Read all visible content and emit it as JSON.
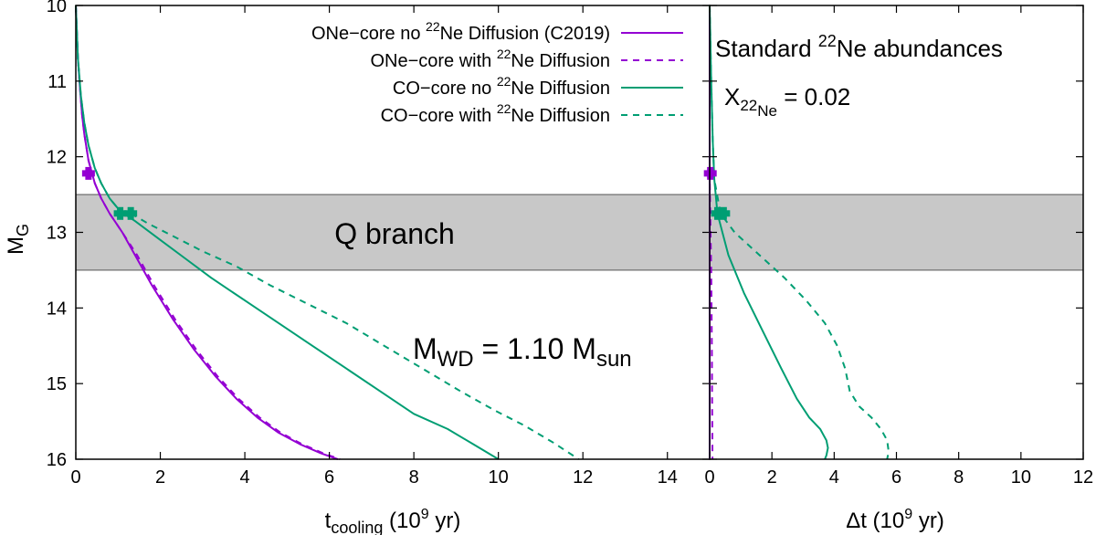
{
  "chart_data": [
    {
      "type": "line",
      "panel": "left",
      "xlabel_main": "t",
      "xlabel_sub": "cooling",
      "xlabel_units": " (10",
      "xlabel_exp": "9",
      "xlabel_end": " yr)",
      "ylabel_main": "M",
      "ylabel_sub": "G",
      "xlim": [
        0,
        15
      ],
      "ylim": [
        10,
        16
      ],
      "xticks": [
        "0",
        "2",
        "4",
        "6",
        "8",
        "10",
        "12",
        "14"
      ],
      "yticks": [
        "10",
        "11",
        "12",
        "13",
        "14",
        "15",
        "16"
      ],
      "band": {
        "y_from": 12.5,
        "y_to": 13.5,
        "label": "Q branch",
        "color": "#c8c8c8"
      },
      "annotation": {
        "main": "M",
        "sub": "WD",
        "mid": " = 1.10 M",
        "sub2": "sun"
      },
      "legend": [
        {
          "pre": "ONe−core no ",
          "sup": "22",
          "post": "Ne Diffusion (C2019)",
          "color": "#9400d3",
          "dash": false
        },
        {
          "pre": "ONe−core with ",
          "sup": "22",
          "post": "Ne Diffusion",
          "color": "#9400d3",
          "dash": true
        },
        {
          "pre": "CO−core no ",
          "sup": "22",
          "post": "Ne Diffusion",
          "color": "#009e73",
          "dash": false
        },
        {
          "pre": "CO−core with ",
          "sup": "22",
          "post": "Ne Diffusion",
          "color": "#009e73",
          "dash": true
        }
      ],
      "series": [
        {
          "name": "ONe-core no 22Ne Diffusion (C2019)",
          "color": "#9400d3",
          "dash": false,
          "x": [
            0.0,
            0.05,
            0.1,
            0.15,
            0.2,
            0.3,
            0.45,
            0.6,
            0.8,
            1.1,
            1.4,
            1.8,
            2.3,
            2.8,
            3.3,
            3.8,
            4.3,
            4.8,
            5.3,
            5.8,
            6.2
          ],
          "y": [
            10.0,
            10.7,
            11.1,
            11.45,
            11.7,
            12.05,
            12.35,
            12.55,
            12.75,
            13.0,
            13.3,
            13.7,
            14.15,
            14.55,
            14.9,
            15.2,
            15.45,
            15.65,
            15.8,
            15.92,
            16.0
          ]
        },
        {
          "name": "ONe-core with 22Ne Diffusion",
          "color": "#9400d3",
          "dash": true,
          "x": [
            0.0,
            0.05,
            0.1,
            0.15,
            0.2,
            0.3,
            0.45,
            0.6,
            0.8,
            1.1,
            1.45,
            1.85,
            2.35,
            2.85,
            3.35,
            3.85,
            4.35,
            4.85,
            5.35,
            5.85,
            6.25
          ],
          "y": [
            10.0,
            10.7,
            11.1,
            11.45,
            11.7,
            12.05,
            12.35,
            12.55,
            12.75,
            13.0,
            13.3,
            13.7,
            14.15,
            14.55,
            14.9,
            15.2,
            15.45,
            15.65,
            15.8,
            15.92,
            16.0
          ]
        },
        {
          "name": "CO-core no 22Ne Diffusion",
          "color": "#009e73",
          "dash": false,
          "x": [
            0.0,
            0.05,
            0.12,
            0.2,
            0.3,
            0.45,
            0.6,
            0.8,
            1.05,
            1.4,
            2.0,
            2.6,
            3.2,
            4.0,
            4.8,
            5.6,
            6.4,
            7.2,
            8.0,
            8.8,
            9.4,
            10.0
          ],
          "y": [
            10.0,
            10.7,
            11.2,
            11.55,
            11.85,
            12.15,
            12.35,
            12.55,
            12.72,
            12.85,
            13.1,
            13.35,
            13.6,
            13.9,
            14.2,
            14.5,
            14.8,
            15.1,
            15.4,
            15.6,
            15.8,
            16.0
          ]
        },
        {
          "name": "CO-core with 22Ne Diffusion",
          "color": "#009e73",
          "dash": true,
          "x": [
            0.0,
            0.05,
            0.12,
            0.2,
            0.3,
            0.45,
            0.6,
            0.8,
            1.05,
            1.3,
            1.7,
            2.3,
            3.0,
            3.8,
            4.6,
            5.5,
            6.4,
            7.3,
            8.2,
            9.1,
            9.9,
            10.6,
            11.3,
            11.9
          ],
          "y": [
            10.0,
            10.7,
            11.2,
            11.55,
            11.85,
            12.15,
            12.35,
            12.55,
            12.72,
            12.75,
            12.88,
            13.05,
            13.25,
            13.45,
            13.7,
            13.95,
            14.2,
            14.5,
            14.8,
            15.1,
            15.35,
            15.55,
            15.78,
            16.0
          ]
        }
      ],
      "markers": [
        {
          "x": 0.3,
          "y": 12.22,
          "color": "#9400d3"
        },
        {
          "x": 1.05,
          "y": 12.75,
          "color": "#009e73"
        },
        {
          "x": 1.3,
          "y": 12.75,
          "color": "#009e73"
        }
      ]
    },
    {
      "type": "line",
      "panel": "right",
      "xlabel_main": "Δt (10",
      "xlabel_exp": "9",
      "xlabel_end": " yr)",
      "xlim": [
        0,
        12
      ],
      "ylim": [
        10,
        16
      ],
      "xticks": [
        "0",
        "2",
        "4",
        "6",
        "8",
        "10",
        "12"
      ],
      "band": {
        "y_from": 12.5,
        "y_to": 13.5,
        "color": "#c8c8c8"
      },
      "annotation_title": {
        "pre": "Standard ",
        "sup": "22",
        "post": "Ne abundances"
      },
      "annotation_x": {
        "main": "X",
        "sub1": "22",
        "sub2": "Ne",
        "value": " = 0.02"
      },
      "series": [
        {
          "name": "ONe-core no 22Ne Diffusion (C2019)",
          "color": "#9400d3",
          "dash": false,
          "x": [
            0.0,
            0.0,
            0.0,
            0.0
          ],
          "y": [
            10.0,
            12.2,
            14.0,
            16.0
          ]
        },
        {
          "name": "ONe-core with 22Ne Diffusion",
          "color": "#9400d3",
          "dash": true,
          "x": [
            0.0,
            0.02,
            0.05,
            0.07,
            0.08,
            0.09
          ],
          "y": [
            12.2,
            12.8,
            13.5,
            14.5,
            15.3,
            16.0
          ]
        },
        {
          "name": "CO-core no 22Ne Diffusion",
          "color": "#009e73",
          "dash": false,
          "x": [
            0.0,
            0.05,
            0.1,
            0.15,
            0.25,
            0.6,
            1.1,
            1.7,
            2.3,
            2.8,
            3.2,
            3.55,
            3.75,
            3.8,
            3.75,
            3.7
          ],
          "y": [
            10.0,
            11.0,
            11.8,
            12.3,
            12.75,
            13.3,
            13.8,
            14.3,
            14.8,
            15.2,
            15.45,
            15.6,
            15.75,
            15.85,
            15.95,
            16.0
          ]
        },
        {
          "name": "CO-core with 22Ne Diffusion",
          "color": "#009e73",
          "dash": true,
          "x": [
            0.0,
            0.05,
            0.1,
            0.15,
            0.35,
            0.8,
            1.6,
            2.4,
            3.1,
            3.7,
            4.1,
            4.35,
            4.5,
            4.8,
            5.2,
            5.5,
            5.7,
            5.75,
            5.7
          ],
          "y": [
            10.0,
            11.0,
            11.8,
            12.3,
            12.75,
            13.0,
            13.3,
            13.6,
            13.9,
            14.2,
            14.5,
            14.8,
            15.1,
            15.3,
            15.45,
            15.6,
            15.75,
            15.9,
            16.0
          ]
        }
      ],
      "markers": [
        {
          "x": 0.02,
          "y": 12.22,
          "color": "#9400d3"
        },
        {
          "x": 0.25,
          "y": 12.75,
          "color": "#009e73"
        },
        {
          "x": 0.45,
          "y": 12.75,
          "color": "#009e73"
        }
      ]
    }
  ]
}
